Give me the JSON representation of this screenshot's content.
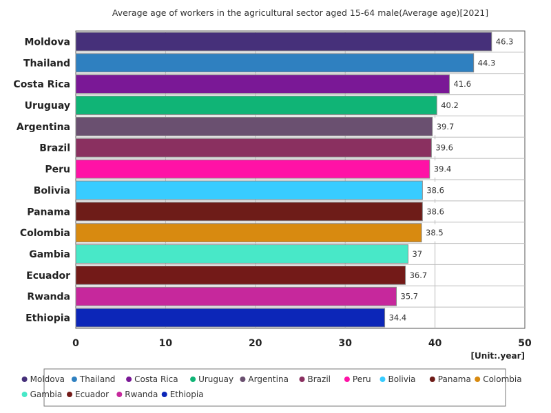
{
  "chart_data": {
    "type": "bar",
    "orientation": "horizontal",
    "title": "Average age of workers in the agricultural sector aged 15-64 male(Average age)[2021]",
    "unit_label": "[Unit:.year]",
    "categories": [
      "Moldova",
      "Thailand",
      "Costa Rica",
      "Uruguay",
      "Argentina",
      "Brazil",
      "Peru",
      "Bolivia",
      "Panama",
      "Colombia",
      "Gambia",
      "Ecuador",
      "Rwanda",
      "Ethiopia"
    ],
    "values": [
      46.3,
      44.3,
      41.6,
      40.2,
      39.7,
      39.6,
      39.4,
      38.6,
      38.6,
      38.5,
      37,
      36.7,
      35.7,
      34.4
    ],
    "value_labels": [
      "46.3",
      "44.3",
      "41.6",
      "40.2",
      "39.7",
      "39.6",
      "39.4",
      "38.6",
      "38.6",
      "38.5",
      "37",
      "36.7",
      "35.7",
      "34.4"
    ],
    "colors": [
      "#46307a",
      "#2f80c0",
      "#7a1896",
      "#10b476",
      "#6a5070",
      "#8a3060",
      "#ff12a6",
      "#38ccff",
      "#6e1c18",
      "#d88a10",
      "#48e8c8",
      "#731a18",
      "#c6289c",
      "#0c26b8"
    ],
    "xlim": [
      0,
      50
    ],
    "xticks": [
      0,
      10,
      20,
      30,
      40,
      50
    ],
    "xtick_labels": [
      "0",
      "10",
      "20",
      "30",
      "40",
      "50"
    ],
    "grid": true,
    "legend_placement": "bottom"
  }
}
